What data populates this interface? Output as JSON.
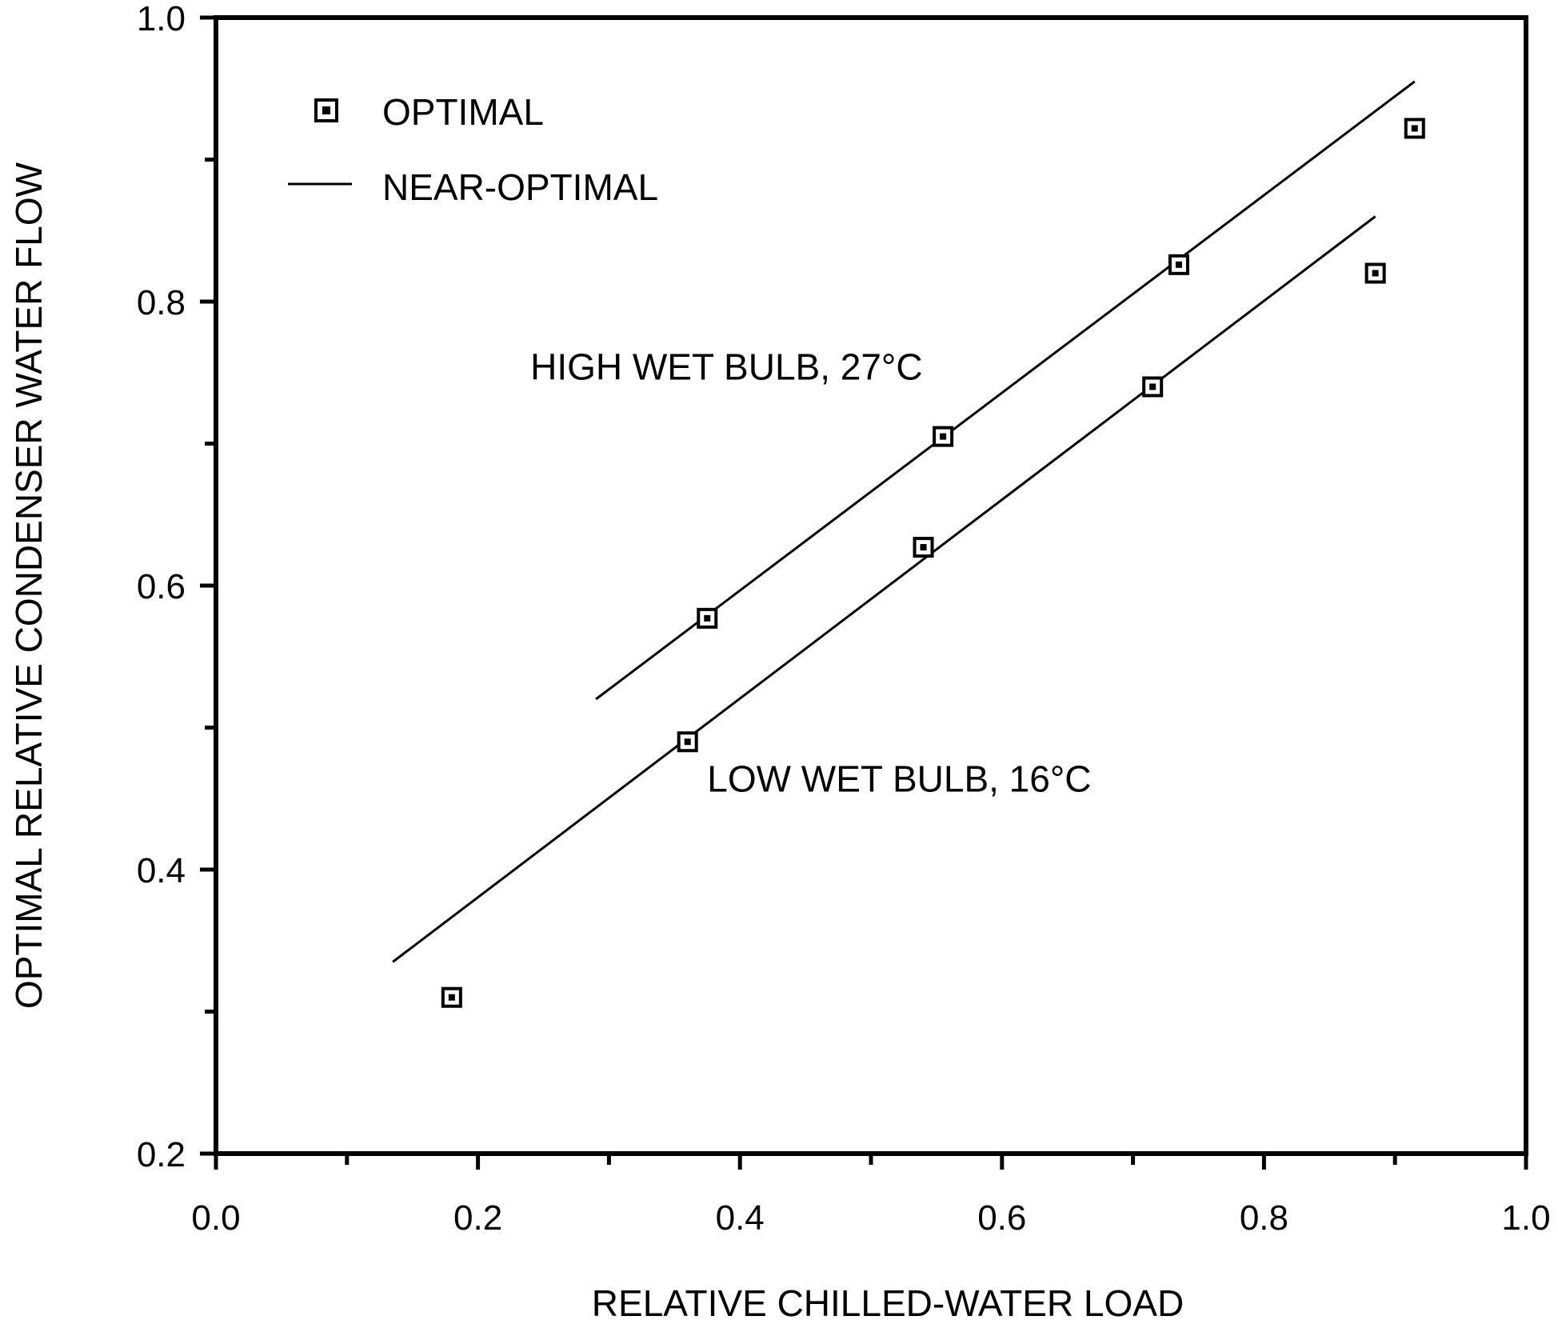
{
  "chart_data": {
    "type": "scatter",
    "title": "",
    "xlabel": "RELATIVE CHILLED-WATER LOAD",
    "ylabel": "OPTIMAL RELATIVE CONDENSER WATER FLOW",
    "xlim": [
      0.0,
      1.0
    ],
    "ylim": [
      0.2,
      1.0
    ],
    "x_ticks": [
      "0.0",
      "0.2",
      "0.4",
      "0.6",
      "0.8",
      "1.0"
    ],
    "y_ticks": [
      "0.2",
      "0.4",
      "0.6",
      "0.8",
      "1.0"
    ],
    "grid": false,
    "legend": {
      "placement": "top-left",
      "entries": [
        {
          "label": "OPTIMAL",
          "marker": "square-dot"
        },
        {
          "label": "NEAR-OPTIMAL",
          "marker": "line"
        }
      ]
    },
    "series": [
      {
        "kind": "points",
        "points": [
          {
            "x": 0.18,
            "y": 0.31
          },
          {
            "x": 0.36,
            "y": 0.49
          },
          {
            "x": 0.375,
            "y": 0.577
          },
          {
            "x": 0.54,
            "y": 0.627
          },
          {
            "x": 0.555,
            "y": 0.705
          },
          {
            "x": 0.715,
            "y": 0.74
          },
          {
            "x": 0.735,
            "y": 0.826
          },
          {
            "x": 0.885,
            "y": 0.82
          },
          {
            "x": 0.915,
            "y": 0.922
          }
        ]
      },
      {
        "kind": "line",
        "points": [
          {
            "x": 0.29,
            "y": 0.52
          },
          {
            "x": 0.915,
            "y": 0.955
          }
        ]
      },
      {
        "kind": "line",
        "points": [
          {
            "x": 0.135,
            "y": 0.335
          },
          {
            "x": 0.885,
            "y": 0.86
          }
        ]
      }
    ],
    "annotations": [
      {
        "text": "HIGH WET BULB, 27°C",
        "x": 0.24,
        "y": 0.745
      },
      {
        "text": "LOW WET BULB, 16°C",
        "x": 0.375,
        "y": 0.455
      }
    ]
  }
}
